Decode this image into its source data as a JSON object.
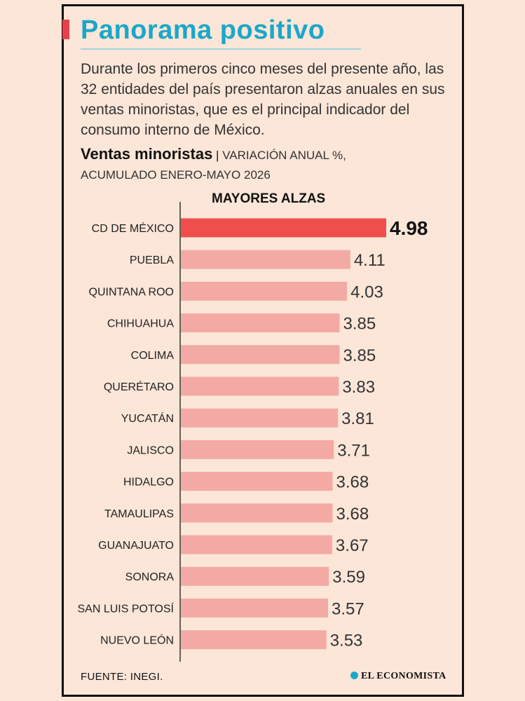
{
  "title": "Panorama positivo",
  "description": "Durante los primeros cinco meses del presente año, las 32 entidades del país presentaron alzas anuales en sus ventas minoristas, que es el principal indicador del consumo interno de México.",
  "chart_heading": {
    "strong": "Ventas minoristas",
    "separator": "|",
    "subtitle_line1": "VARIACIÓN ANUAL %,",
    "subtitle_line2": "ACUMULADO ENERO-MAYO 2026"
  },
  "section_label": "MAYORES ALZAS",
  "source": "FUENTE:  INEGI.",
  "brand": "EL ECONOMISTA",
  "colors": {
    "highlight_bar": "#f04e4c",
    "bar": "#f4aaa4",
    "title": "#1ba7c9",
    "accent": "#e8414a"
  },
  "chart_data": {
    "type": "bar",
    "orientation": "horizontal",
    "categories": [
      "CD DE MÉXICO",
      "PUEBLA",
      "QUINTANA ROO",
      "CHIHUAHUA",
      "COLIMA",
      "QUERÉTARO",
      "YUCATÁN",
      "JALISCO",
      "HIDALGO",
      "TAMAULIPAS",
      "GUANAJUATO",
      "SONORA",
      "SAN LUIS POTOSÍ",
      "NUEVO LEÓN"
    ],
    "values": [
      4.98,
      4.11,
      4.03,
      3.85,
      3.85,
      3.83,
      3.81,
      3.71,
      3.68,
      3.68,
      3.67,
      3.59,
      3.57,
      3.53
    ],
    "labels": [
      "4.98",
      "4.11",
      "4.03",
      "3.85",
      "3.85",
      "3.83",
      "3.81",
      "3.71",
      "3.68",
      "3.68",
      "3.67",
      "3.59",
      "3.57",
      "3.53"
    ],
    "highlight_index": 0,
    "xlim": [
      0,
      5
    ],
    "grid": false,
    "title": "Ventas minoristas",
    "subtitle": "VARIACIÓN ANUAL %, ACUMULADO ENERO-MAYO 2026"
  }
}
